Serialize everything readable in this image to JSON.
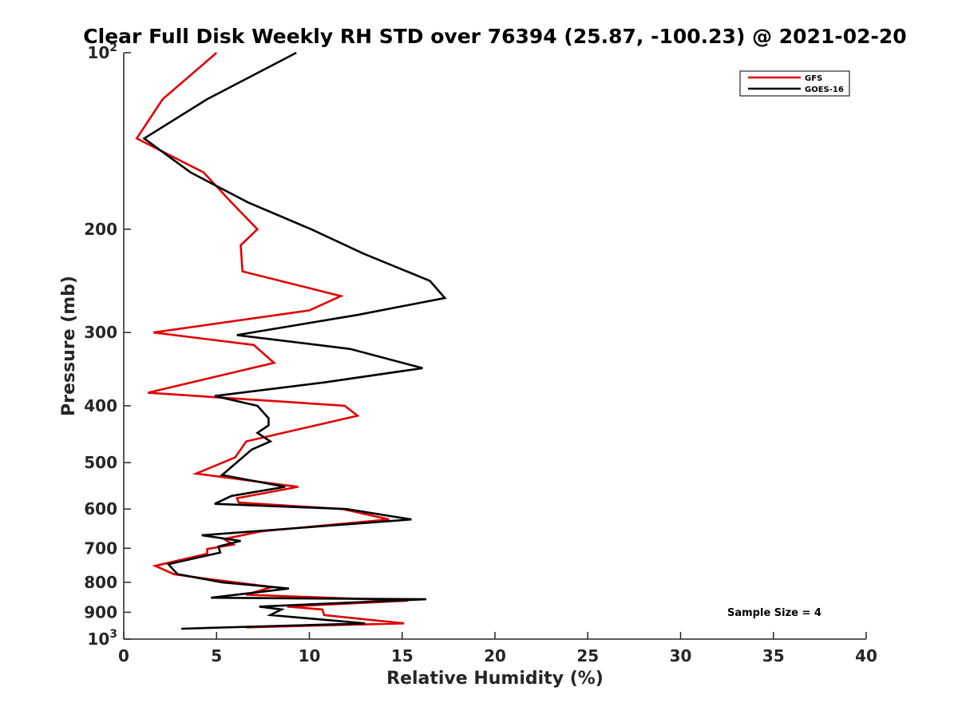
{
  "chart_data": {
    "type": "line",
    "title": "Clear Full Disk Weekly RH STD over 76394 (25.87, -100.23) @ 2021-02-20",
    "xlabel": "Relative Humidity (%)",
    "ylabel": "Pressure (mb)",
    "xlim": [
      0,
      40
    ],
    "ylim": [
      100,
      1000
    ],
    "yscale": "log",
    "y_reversed": true,
    "grid": false,
    "legend_position": "top-right",
    "x_ticks": [
      "0",
      "5",
      "10",
      "15",
      "20",
      "25",
      "30",
      "35",
      "40"
    ],
    "y_ticks": [
      {
        "value": 100,
        "label": "10",
        "sup": "2"
      },
      {
        "value": 200,
        "label": "200",
        "sup": ""
      },
      {
        "value": 300,
        "label": "300",
        "sup": ""
      },
      {
        "value": 400,
        "label": "400",
        "sup": ""
      },
      {
        "value": 500,
        "label": "500",
        "sup": ""
      },
      {
        "value": 600,
        "label": "600",
        "sup": ""
      },
      {
        "value": 700,
        "label": "700",
        "sup": ""
      },
      {
        "value": 800,
        "label": "800",
        "sup": ""
      },
      {
        "value": 900,
        "label": "900",
        "sup": ""
      },
      {
        "value": 1000,
        "label": "10",
        "sup": "3"
      }
    ],
    "annotation": "Sample Size = 4",
    "series": [
      {
        "name": "GFS",
        "color": "#e00000",
        "points": [
          [
            5.0,
            100
          ],
          [
            2.1,
            120
          ],
          [
            0.7,
            140
          ],
          [
            4.3,
            160
          ],
          [
            5.8,
            180
          ],
          [
            7.2,
            200
          ],
          [
            6.3,
            213
          ],
          [
            6.4,
            236
          ],
          [
            11.7,
            260
          ],
          [
            10.0,
            275
          ],
          [
            1.6,
            300
          ],
          [
            7.0,
            315
          ],
          [
            8.1,
            338
          ],
          [
            1.3,
            380
          ],
          [
            11.9,
            400
          ],
          [
            12.6,
            416
          ],
          [
            6.6,
            460
          ],
          [
            6.3,
            475
          ],
          [
            6.0,
            490
          ],
          [
            3.9,
            522
          ],
          [
            9.4,
            550
          ],
          [
            6.1,
            575
          ],
          [
            6.2,
            585
          ],
          [
            11.8,
            600
          ],
          [
            14.3,
            625
          ],
          [
            7.4,
            655
          ],
          [
            5.4,
            675
          ],
          [
            5.9,
            690
          ],
          [
            4.5,
            702
          ],
          [
            4.5,
            715
          ],
          [
            1.7,
            750
          ],
          [
            2.7,
            775
          ],
          [
            4.6,
            790
          ],
          [
            8.0,
            815
          ],
          [
            6.6,
            840
          ],
          [
            15.3,
            860
          ],
          [
            8.8,
            880
          ],
          [
            10.7,
            890
          ],
          [
            10.8,
            910
          ],
          [
            15.1,
            940
          ],
          [
            6.6,
            955
          ]
        ]
      },
      {
        "name": "GOES-16",
        "color": "#000000",
        "points": [
          [
            9.3,
            100
          ],
          [
            4.5,
            120
          ],
          [
            1.1,
            140
          ],
          [
            3.6,
            160
          ],
          [
            6.7,
            180
          ],
          [
            10.1,
            200
          ],
          [
            12.9,
            220
          ],
          [
            16.5,
            245
          ],
          [
            17.3,
            262
          ],
          [
            12.6,
            280
          ],
          [
            6.1,
            303
          ],
          [
            12.2,
            320
          ],
          [
            16.1,
            345
          ],
          [
            10.8,
            365
          ],
          [
            4.9,
            385
          ],
          [
            7.2,
            400
          ],
          [
            7.8,
            420
          ],
          [
            7.8,
            432
          ],
          [
            7.2,
            445
          ],
          [
            7.9,
            460
          ],
          [
            6.9,
            475
          ],
          [
            5.3,
            525
          ],
          [
            8.7,
            550
          ],
          [
            5.8,
            570
          ],
          [
            4.9,
            588
          ],
          [
            12.0,
            600
          ],
          [
            15.5,
            625
          ],
          [
            4.2,
            665
          ],
          [
            6.3,
            680
          ],
          [
            5.1,
            695
          ],
          [
            5.2,
            712
          ],
          [
            2.4,
            745
          ],
          [
            2.9,
            775
          ],
          [
            5.3,
            800
          ],
          [
            8.9,
            820
          ],
          [
            4.7,
            850
          ],
          [
            16.3,
            855
          ],
          [
            7.3,
            880
          ],
          [
            8.5,
            890
          ],
          [
            7.9,
            910
          ],
          [
            13.0,
            940
          ],
          [
            3.1,
            960
          ]
        ]
      }
    ]
  }
}
